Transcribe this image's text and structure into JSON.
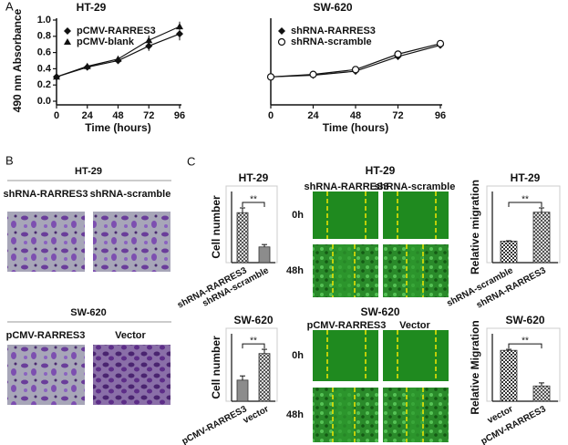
{
  "chart_data": [
    {
      "type": "line",
      "title": "HT-29",
      "xlabel": "Time (hours)",
      "ylabel": "490 nm Absorbance",
      "x": [
        0,
        24,
        48,
        72,
        96
      ],
      "xlim": [
        0,
        96
      ],
      "xticks": [
        0,
        24,
        48,
        72,
        96
      ],
      "ylim": [
        0,
        1
      ],
      "yticks": [
        {
          "value": 0,
          "label": "0.0"
        },
        0.2,
        0.4,
        0.6,
        0.8,
        {
          "value": 1,
          "label": "1.0"
        }
      ],
      "series": [
        {
          "name": "pCMV-RARRES3",
          "color": "#111111",
          "marker": "diamond",
          "values": [
            0.3,
            0.42,
            0.5,
            0.68,
            0.83
          ],
          "errors": [
            0.02,
            0.03,
            0.03,
            0.06,
            0.08
          ]
        },
        {
          "name": "pCMV-blank",
          "color": "#111111",
          "marker": "triangle",
          "values": [
            0.3,
            0.43,
            0.52,
            0.75,
            0.92
          ],
          "errors": [
            0.02,
            0.03,
            0.03,
            0.06,
            0.06
          ]
        }
      ]
    },
    {
      "type": "line",
      "title": "SW-620",
      "xlabel": "Time (hours)",
      "x": [
        0,
        24,
        48,
        72,
        96
      ],
      "xlim": [
        0,
        96
      ],
      "xticks": [
        0,
        24,
        48,
        72,
        96
      ],
      "ylim": [
        0,
        1
      ],
      "series": [
        {
          "name": "shRNA-RARRES3",
          "color": "#111111",
          "marker": "diamond",
          "values": [
            0.3,
            0.32,
            0.37,
            0.55,
            0.69
          ],
          "errors": [
            0.01,
            0.01,
            0.02,
            0.02,
            0.03
          ]
        },
        {
          "name": "shRNA-scramble",
          "color": "#111111",
          "marker": "circle-open",
          "values": [
            0.3,
            0.33,
            0.39,
            0.58,
            0.71
          ],
          "errors": [
            0.01,
            0.01,
            0.02,
            0.03,
            0.03
          ]
        }
      ]
    },
    {
      "type": "bar",
      "title": "HT-29",
      "ylabel": "Cell number",
      "categories": [
        "shRNA-RARRES3",
        "shRNA-scramble"
      ],
      "values": [
        105,
        33
      ],
      "errors": [
        10,
        5
      ],
      "patterns": [
        "crosshatch",
        "solid"
      ],
      "color": "#8c8c8c",
      "annotation": "**"
    },
    {
      "type": "bar",
      "title": "HT-29",
      "ylabel": "Relative migration",
      "categories": [
        "shRNA-scramble",
        "shRNA-RARRES3"
      ],
      "values": [
        1,
        2.35
      ],
      "errors": [
        0.02,
        0.2
      ],
      "patterns": [
        "checker",
        "crosshatch"
      ],
      "color": "#8c8c8c",
      "annotation": "**"
    },
    {
      "type": "bar",
      "title": "SW-620",
      "ylabel": "Cell number",
      "categories": [
        "pCMV-RARRES3",
        "vector"
      ],
      "values": [
        50,
        113
      ],
      "errors": [
        10,
        10
      ],
      "patterns": [
        "solid",
        "crosshatch"
      ],
      "color": "#8c8c8c",
      "annotation": "**"
    },
    {
      "type": "bar",
      "title": "SW-620",
      "ylabel": "Relative Migration",
      "categories": [
        "vector",
        "pCMV-RARRES3"
      ],
      "values": [
        1,
        0.3
      ],
      "errors": [
        0.02,
        0.06
      ],
      "patterns": [
        "checker",
        "crosshatch"
      ],
      "color": "#8c8c8c",
      "annotation": "**"
    }
  ],
  "figure": {
    "labels": [
      "A",
      "B",
      "C"
    ],
    "panel_b": [
      {
        "title": "HT-29",
        "images": [
          "shRNA-RARRES3",
          "shRNA-scramble"
        ]
      },
      {
        "title": "SW-620",
        "images": [
          "pCMV-RARRES3",
          "Vector"
        ]
      }
    ],
    "panel_c": [
      {
        "title": "HT-29",
        "columns": [
          "shRNA-RARRES3",
          "shRNA-scramble"
        ],
        "rows": [
          "0h",
          "48h"
        ]
      },
      {
        "title": "SW-620",
        "columns": [
          "pCMV-RARRES3",
          "Vector"
        ],
        "rows": [
          "0h",
          "48h"
        ]
      }
    ]
  }
}
